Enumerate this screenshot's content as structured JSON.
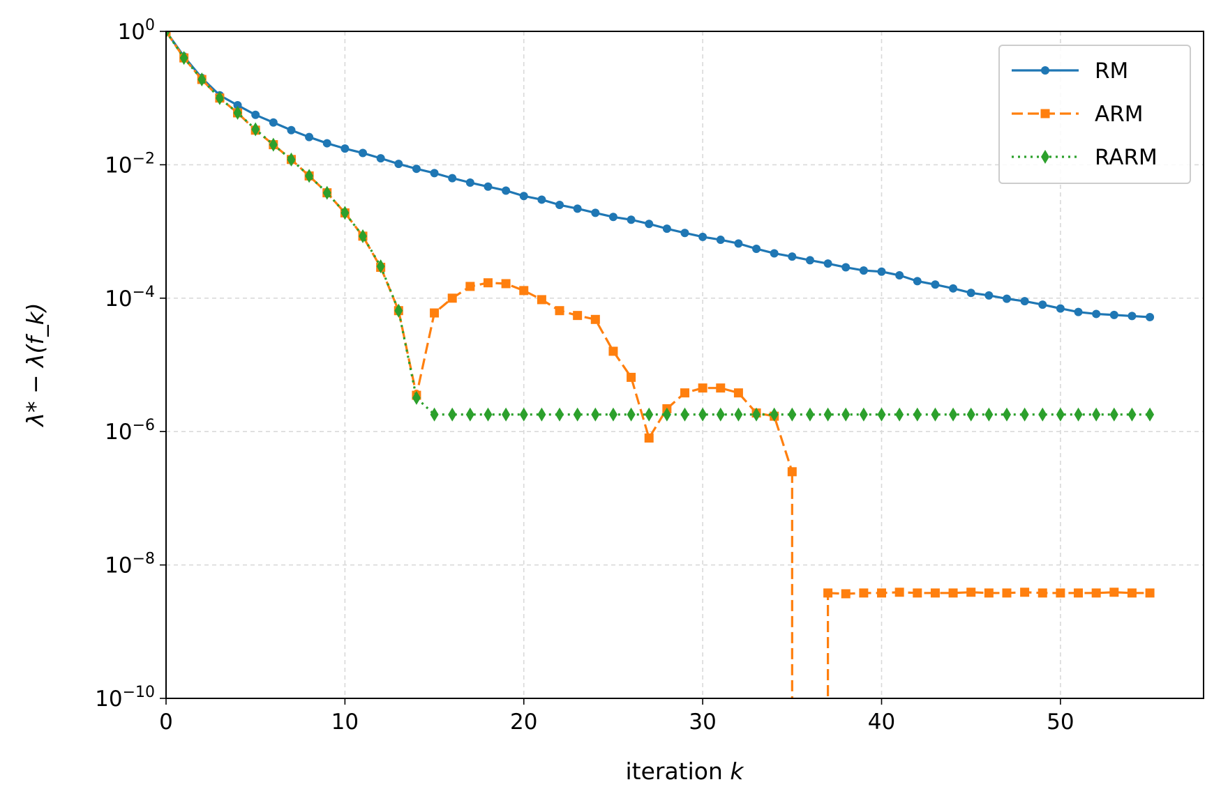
{
  "chart_data": {
    "type": "line",
    "title": "",
    "xlabel": "iteration",
    "xlabel_var": "k",
    "ylabel": "λ* − λ(f_k)",
    "xlim": [
      0,
      58
    ],
    "ylim": [
      1e-10,
      1
    ],
    "yscale": "log",
    "grid": true,
    "legend_position": "top-right",
    "x_ticks": [
      0,
      10,
      20,
      30,
      40,
      50
    ],
    "y_ticks": [
      {
        "value": 1,
        "base": "10",
        "exp": "0"
      },
      {
        "value": 0.01,
        "base": "10",
        "exp": "−2"
      },
      {
        "value": 0.0001,
        "base": "10",
        "exp": "−4"
      },
      {
        "value": 1e-06,
        "base": "10",
        "exp": "−6"
      },
      {
        "value": 1e-08,
        "base": "10",
        "exp": "−8"
      },
      {
        "value": 1e-10,
        "base": "10",
        "exp": "−10"
      }
    ],
    "series": [
      {
        "name": "RM",
        "color": "#1f77b4",
        "line_style": "solid",
        "marker": "circle",
        "x": [
          0,
          1,
          2,
          3,
          4,
          5,
          6,
          7,
          8,
          9,
          10,
          11,
          12,
          13,
          14,
          15,
          16,
          17,
          18,
          19,
          20,
          21,
          22,
          23,
          24,
          25,
          26,
          27,
          28,
          29,
          30,
          31,
          32,
          33,
          34,
          35,
          36,
          37,
          38,
          39,
          40,
          41,
          42,
          43,
          44,
          45,
          46,
          47,
          48,
          49,
          50,
          51,
          52,
          53,
          54,
          55
        ],
        "y": [
          1.0,
          0.42,
          0.2,
          0.11,
          0.078,
          0.056,
          0.043,
          0.033,
          0.026,
          0.021,
          0.0175,
          0.015,
          0.0125,
          0.0103,
          0.0087,
          0.0075,
          0.0063,
          0.0054,
          0.0047,
          0.0041,
          0.0034,
          0.003,
          0.0025,
          0.0022,
          0.0019,
          0.00165,
          0.0015,
          0.0013,
          0.0011,
          0.00095,
          0.00083,
          0.00075,
          0.00066,
          0.00055,
          0.00047,
          0.00042,
          0.00037,
          0.00033,
          0.00029,
          0.00026,
          0.00025,
          0.00022,
          0.00018,
          0.00016,
          0.00014,
          0.00012,
          0.00011,
          9.8e-05,
          9e-05,
          8e-05,
          7e-05,
          6.2e-05,
          5.8e-05,
          5.6e-05,
          5.4e-05,
          5.2e-05
        ]
      },
      {
        "name": "ARM",
        "color": "#ff7f0e",
        "line_style": "dashed",
        "marker": "square",
        "x": [
          0,
          1,
          2,
          3,
          4,
          5,
          6,
          7,
          8,
          9,
          10,
          11,
          12,
          13,
          14,
          15,
          16,
          17,
          18,
          19,
          20,
          21,
          22,
          23,
          24,
          25,
          26,
          27,
          28,
          29,
          30,
          31,
          32,
          33,
          34,
          35,
          36,
          37,
          38,
          39,
          40,
          41,
          42,
          43,
          44,
          45,
          46,
          47,
          48,
          49,
          50,
          51,
          52,
          53,
          54,
          55
        ],
        "y": [
          1.0,
          0.4,
          0.19,
          0.1,
          0.06,
          0.033,
          0.02,
          0.012,
          0.0068,
          0.0038,
          0.0019,
          0.00085,
          0.00029,
          6.5e-05,
          3.5e-06,
          6e-05,
          0.0001,
          0.00015,
          0.00017,
          0.000165,
          0.00013,
          9.5e-05,
          6.5e-05,
          5.5e-05,
          4.8e-05,
          1.6e-05,
          6.5e-06,
          8e-07,
          2.2e-06,
          3.8e-06,
          4.5e-06,
          4.5e-06,
          3.8e-06,
          1.9e-06,
          1.7e-06,
          2.5e-07,
          null,
          3.8e-09,
          3.7e-09,
          3.8e-09,
          3.8e-09,
          3.9e-09,
          3.8e-09,
          3.8e-09,
          3.8e-09,
          3.9e-09,
          3.8e-09,
          3.8e-09,
          3.9e-09,
          3.8e-09,
          3.8e-09,
          3.8e-09,
          3.8e-09,
          3.9e-09,
          3.8e-09,
          3.8e-09
        ]
      },
      {
        "name": "RARM",
        "color": "#2ca02c",
        "line_style": "dotted",
        "marker": "thin_diamond",
        "x": [
          0,
          1,
          2,
          3,
          4,
          5,
          6,
          7,
          8,
          9,
          10,
          11,
          12,
          13,
          14,
          15,
          16,
          17,
          18,
          19,
          20,
          21,
          22,
          23,
          24,
          25,
          26,
          27,
          28,
          29,
          30,
          31,
          32,
          33,
          34,
          35,
          36,
          37,
          38,
          39,
          40,
          41,
          42,
          43,
          44,
          45,
          46,
          47,
          48,
          49,
          50,
          51,
          52,
          53,
          54,
          55
        ],
        "y": [
          1.0,
          0.4,
          0.19,
          0.1,
          0.06,
          0.034,
          0.02,
          0.012,
          0.0068,
          0.0038,
          0.0019,
          0.00085,
          0.0003,
          6.5e-05,
          3.2e-06,
          1.8e-06,
          1.8e-06,
          1.8e-06,
          1.8e-06,
          1.8e-06,
          1.8e-06,
          1.8e-06,
          1.8e-06,
          1.8e-06,
          1.8e-06,
          1.8e-06,
          1.8e-06,
          1.8e-06,
          1.8e-06,
          1.8e-06,
          1.8e-06,
          1.8e-06,
          1.8e-06,
          1.8e-06,
          1.8e-06,
          1.8e-06,
          1.8e-06,
          1.8e-06,
          1.8e-06,
          1.8e-06,
          1.8e-06,
          1.8e-06,
          1.8e-06,
          1.8e-06,
          1.8e-06,
          1.8e-06,
          1.8e-06,
          1.8e-06,
          1.8e-06,
          1.8e-06,
          1.8e-06,
          1.8e-06,
          1.8e-06,
          1.8e-06,
          1.8e-06,
          1.8e-06
        ]
      }
    ]
  }
}
